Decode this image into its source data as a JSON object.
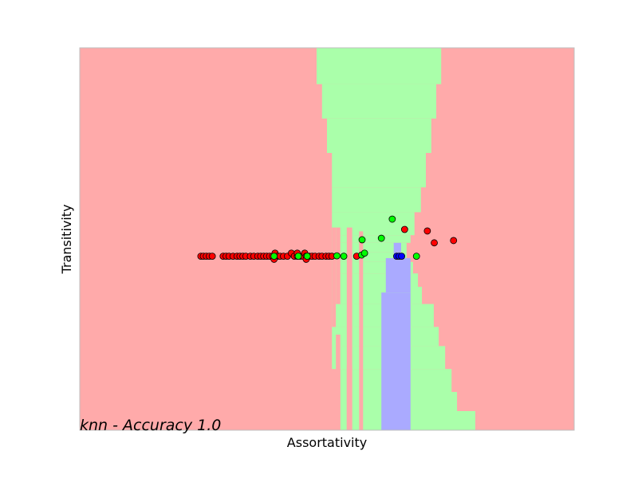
{
  "chart_data": {
    "type": "scatter",
    "annotation": "knn - Accuracy 1.0",
    "xlabel": "Assortativity",
    "ylabel": "Transitivity",
    "title": "",
    "xlim": [
      0,
      1
    ],
    "ylim": [
      0,
      1
    ],
    "grid": false,
    "ticks_visible": false,
    "background": "decision regions (k-nearest neighbours classifier)",
    "colors": {
      "region_red": "#ffaaaa",
      "region_green": "#aaffaa",
      "region_blue": "#aaaaff",
      "point_red": "#ff0000",
      "point_green": "#00ff00",
      "point_blue": "#0000ff",
      "point_edge": "#000000",
      "frame": "#bfbfbf"
    },
    "regions": {
      "green": [
        {
          "x": [
            0.479,
            0.731
          ],
          "y": [
            0.905,
            1.0
          ]
        },
        {
          "x": [
            0.49,
            0.721
          ],
          "y": [
            0.815,
            0.905
          ]
        },
        {
          "x": [
            0.5,
            0.711
          ],
          "y": [
            0.725,
            0.815
          ]
        },
        {
          "x": [
            0.51,
            0.7
          ],
          "y": [
            0.635,
            0.725
          ]
        },
        {
          "x": [
            0.51,
            0.69
          ],
          "y": [
            0.57,
            0.635
          ]
        },
        {
          "x": [
            0.51,
            0.677
          ],
          "y": [
            0.51,
            0.57
          ]
        },
        {
          "x": [
            0.51,
            0.669
          ],
          "y": [
            0.49,
            0.51
          ]
        },
        {
          "x": [
            0.51,
            0.661
          ],
          "y": [
            0.465,
            0.49
          ]
        },
        {
          "x": [
            0.51,
            0.661
          ],
          "y": [
            0.44,
            0.465
          ]
        },
        {
          "x": [
            0.51,
            0.674
          ],
          "y": [
            0.41,
            0.44
          ]
        },
        {
          "x": [
            0.51,
            0.684
          ],
          "y": [
            0.375,
            0.41
          ]
        },
        {
          "x": [
            0.51,
            0.692
          ],
          "y": [
            0.33,
            0.375
          ]
        },
        {
          "x": [
            0.51,
            0.716
          ],
          "y": [
            0.27,
            0.33
          ]
        },
        {
          "x": [
            0.51,
            0.726
          ],
          "y": [
            0.22,
            0.27
          ]
        },
        {
          "x": [
            0.51,
            0.739
          ],
          "y": [
            0.16,
            0.22
          ]
        },
        {
          "x": [
            0.527,
            0.752
          ],
          "y": [
            0.1,
            0.16
          ]
        },
        {
          "x": [
            0.527,
            0.763
          ],
          "y": [
            0.05,
            0.1
          ]
        },
        {
          "x": [
            0.527,
            0.8
          ],
          "y": [
            0.0,
            0.05
          ]
        }
      ],
      "red": [
        {
          "x": [
            0.51,
            0.518
          ],
          "y": [
            0.27,
            0.53
          ]
        },
        {
          "x": [
            0.518,
            0.527
          ],
          "y": [
            0.0,
            0.25
          ]
        },
        {
          "x": [
            0.518,
            0.527
          ],
          "y": [
            0.33,
            0.53
          ]
        },
        {
          "x": [
            0.54,
            0.551
          ],
          "y": [
            0.0,
            0.53
          ]
        },
        {
          "x": [
            0.54,
            0.551
          ],
          "y": [
            0.0,
            0.17
          ]
        },
        {
          "x": [
            0.565,
            0.573
          ],
          "y": [
            0.0,
            0.52
          ]
        }
      ],
      "blue": [
        {
          "x": [
            0.61,
            0.669
          ],
          "y": [
            0.0,
            0.36
          ]
        },
        {
          "x": [
            0.619,
            0.669
          ],
          "y": [
            0.36,
            0.45
          ]
        },
        {
          "x": [
            0.635,
            0.65
          ],
          "y": [
            0.45,
            0.49
          ]
        }
      ]
    },
    "series": [
      {
        "color": "red",
        "points": [
          [
            0.245,
            0.455
          ],
          [
            0.25,
            0.455
          ],
          [
            0.256,
            0.455
          ],
          [
            0.262,
            0.455
          ],
          [
            0.268,
            0.455
          ],
          [
            0.29,
            0.455
          ],
          [
            0.296,
            0.455
          ],
          [
            0.302,
            0.455
          ],
          [
            0.31,
            0.455
          ],
          [
            0.318,
            0.455
          ],
          [
            0.324,
            0.455
          ],
          [
            0.33,
            0.455
          ],
          [
            0.336,
            0.455
          ],
          [
            0.345,
            0.455
          ],
          [
            0.352,
            0.455
          ],
          [
            0.36,
            0.455
          ],
          [
            0.366,
            0.455
          ],
          [
            0.372,
            0.455
          ],
          [
            0.378,
            0.455
          ],
          [
            0.384,
            0.455
          ],
          [
            0.39,
            0.455
          ],
          [
            0.395,
            0.463
          ],
          [
            0.4,
            0.455
          ],
          [
            0.405,
            0.455
          ],
          [
            0.412,
            0.455
          ],
          [
            0.42,
            0.455
          ],
          [
            0.428,
            0.463
          ],
          [
            0.434,
            0.455
          ],
          [
            0.44,
            0.455
          ],
          [
            0.446,
            0.455
          ],
          [
            0.452,
            0.455
          ],
          [
            0.455,
            0.463
          ],
          [
            0.458,
            0.455
          ],
          [
            0.464,
            0.455
          ],
          [
            0.47,
            0.455
          ],
          [
            0.476,
            0.455
          ],
          [
            0.484,
            0.455
          ],
          [
            0.49,
            0.455
          ],
          [
            0.498,
            0.455
          ],
          [
            0.504,
            0.455
          ],
          [
            0.51,
            0.455
          ],
          [
            0.393,
            0.447
          ],
          [
            0.44,
            0.463
          ],
          [
            0.458,
            0.447
          ],
          [
            0.56,
            0.455
          ],
          [
            0.657,
            0.525
          ],
          [
            0.703,
            0.521
          ],
          [
            0.717,
            0.49
          ],
          [
            0.756,
            0.496
          ]
        ]
      },
      {
        "color": "green",
        "points": [
          [
            0.393,
            0.455
          ],
          [
            0.442,
            0.455
          ],
          [
            0.46,
            0.455
          ],
          [
            0.52,
            0.456
          ],
          [
            0.534,
            0.455
          ],
          [
            0.57,
            0.458
          ],
          [
            0.576,
            0.463
          ],
          [
            0.571,
            0.498
          ],
          [
            0.61,
            0.502
          ],
          [
            0.632,
            0.552
          ],
          [
            0.681,
            0.455
          ]
        ]
      },
      {
        "color": "blue",
        "points": [
          [
            0.641,
            0.455
          ],
          [
            0.646,
            0.455
          ],
          [
            0.651,
            0.455
          ]
        ]
      }
    ]
  }
}
